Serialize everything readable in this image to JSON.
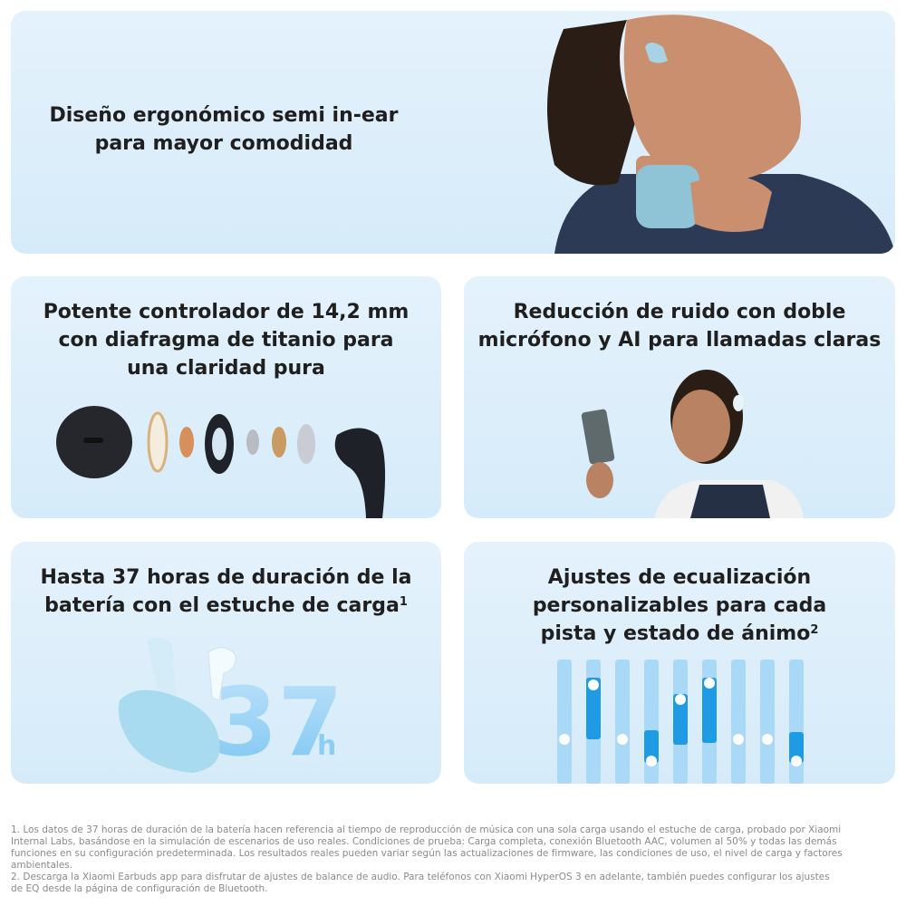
{
  "cards": [
    {
      "title_lines": [
        "Diseño ergonómico semi in-ear",
        "para mayor comodidad"
      ]
    },
    {
      "title_lines": [
        "Potente controlador de 14,2 mm",
        "con diafragma de titanio para",
        "una claridad pura"
      ]
    },
    {
      "title_lines": [
        "Reducción de ruido con doble",
        "micrófono y AI para llamadas claras"
      ]
    },
    {
      "title_lines": [
        "Hasta 37 horas de duración de la",
        "batería con el estuche de carga"
      ],
      "note": "1",
      "badge": {
        "number": "37",
        "unit": "h"
      }
    },
    {
      "title_lines": [
        "Ajustes de ecualización",
        "personalizables para cada",
        "pista y estado de ánimo"
      ],
      "note": "2"
    }
  ],
  "footnotes": [
    "1. Los datos de 37 horas de duración de la batería hacen referencia al tiempo de reproducción de música con una sola carga usando el estuche de carga, probado por Xiaomi Internal Labs, basándose en la simulación de escenarios de uso reales. Condiciones de prueba: Carga completa, conexión Bluetooth AAC, volumen al 50% y todas las demás funciones en su configuración predeterminada. Los resultados reales pueden variar según las actualizaciones de firmware, las condiciones de uso, el nivel de carga y factores ambientales.",
    "2. Descarga la Xiaomi Earbuds app para disfrutar de ajustes de balance de audio. Para teléfonos con Xiaomi HyperOS 3 en adelante, también puedes configurar los ajustes de EQ desde la página de configuración de Bluetooth."
  ]
}
